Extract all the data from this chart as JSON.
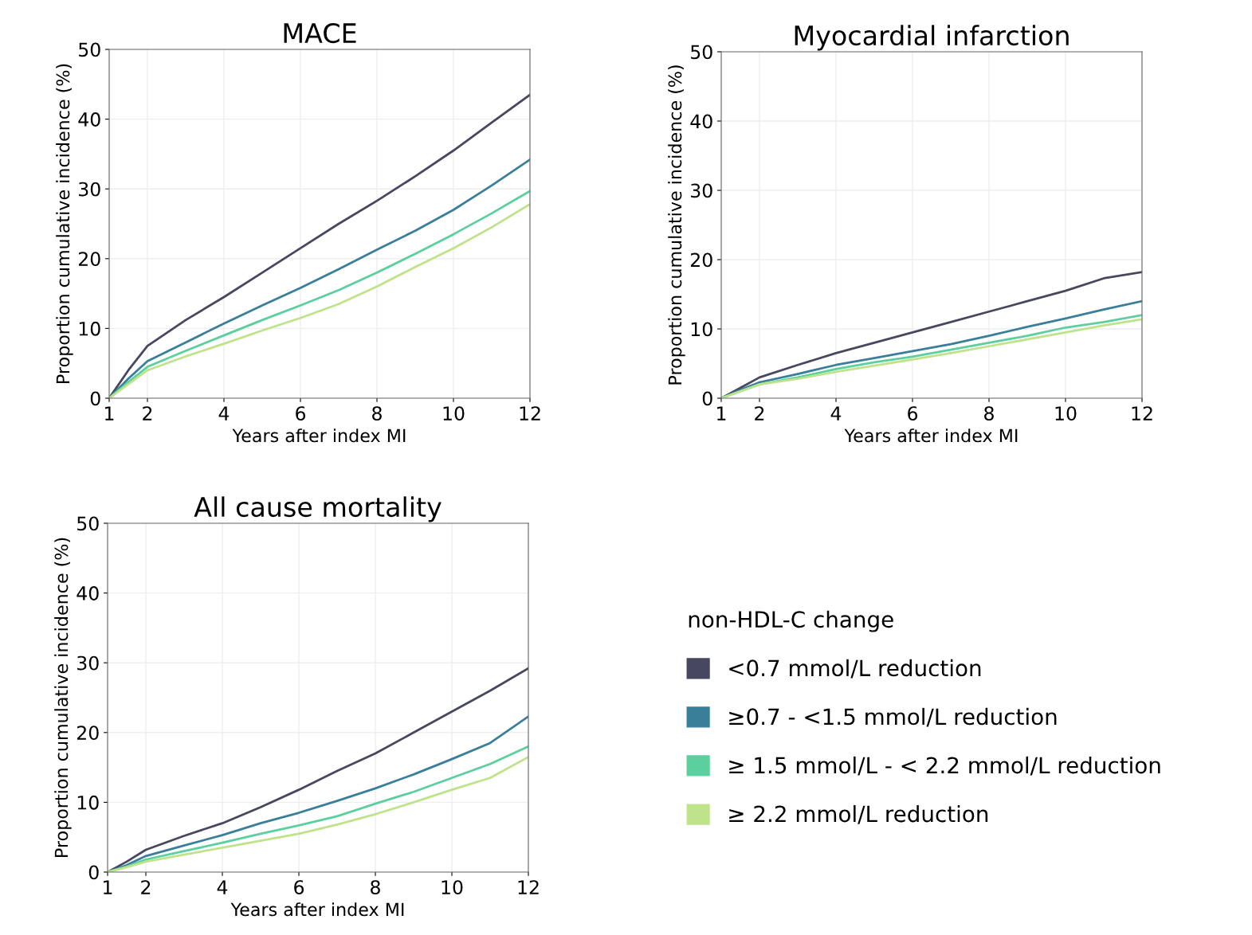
{
  "chart_data": [
    {
      "type": "line",
      "title": "MACE",
      "xlabel": "Years after index MI",
      "ylabel": "Proportion cumulative incidence (%)",
      "x": [
        1,
        1.5,
        2,
        3,
        4,
        5,
        6,
        7,
        8,
        9,
        10,
        11,
        12
      ],
      "xlim": [
        1,
        12
      ],
      "xticks": [
        1,
        2,
        4,
        6,
        8,
        10,
        12
      ],
      "ylim": [
        0,
        50
      ],
      "yticks": [
        0,
        10,
        20,
        30,
        40,
        50
      ],
      "grid": true,
      "series": [
        {
          "color": "#47475f",
          "values": [
            0,
            4,
            7.5,
            11.2,
            14.5,
            18,
            21.5,
            25,
            28.3,
            31.8,
            35.5,
            39.5,
            43.5
          ]
        },
        {
          "color": "#3a7f9a",
          "values": [
            0,
            2.8,
            5.3,
            8,
            10.7,
            13.3,
            15.8,
            18.5,
            21.3,
            24,
            27,
            30.5,
            34.2
          ]
        },
        {
          "color": "#5ccf9e",
          "values": [
            0,
            2.3,
            4.5,
            6.8,
            9,
            11.2,
            13.3,
            15.5,
            18,
            20.7,
            23.5,
            26.5,
            29.7
          ]
        },
        {
          "color": "#bfe38a",
          "values": [
            0,
            2,
            4,
            6,
            7.8,
            9.7,
            11.5,
            13.5,
            16,
            18.8,
            21.5,
            24.5,
            27.8
          ]
        }
      ]
    },
    {
      "type": "line",
      "title": "Myocardial infarction",
      "xlabel": "Years after index MI",
      "ylabel": "Proportion cumulative incidence (%)",
      "x": [
        1,
        1.5,
        2,
        3,
        4,
        5,
        6,
        7,
        8,
        9,
        10,
        11,
        12
      ],
      "xlim": [
        1,
        12
      ],
      "xticks": [
        1,
        2,
        4,
        6,
        8,
        10,
        12
      ],
      "ylim": [
        0,
        50
      ],
      "yticks": [
        0,
        10,
        20,
        30,
        40,
        50
      ],
      "grid": true,
      "series": [
        {
          "color": "#47475f",
          "values": [
            0,
            1.5,
            3,
            4.8,
            6.5,
            8,
            9.5,
            11,
            12.5,
            14,
            15.5,
            17.3,
            18.2
          ]
        },
        {
          "color": "#3a7f9a",
          "values": [
            0,
            1.2,
            2.3,
            3.5,
            4.8,
            5.8,
            6.8,
            7.8,
            9,
            10.3,
            11.5,
            12.8,
            14
          ]
        },
        {
          "color": "#5ccf9e",
          "values": [
            0,
            1,
            2,
            3,
            4.2,
            5.2,
            6,
            7,
            8,
            9,
            10.2,
            11,
            12
          ]
        },
        {
          "color": "#bfe38a",
          "values": [
            0,
            1,
            2,
            2.8,
            3.8,
            4.7,
            5.6,
            6.5,
            7.5,
            8.5,
            9.5,
            10.5,
            11.4
          ]
        }
      ]
    },
    {
      "type": "line",
      "title": "All cause mortality",
      "xlabel": "Years after index MI",
      "ylabel": "Proportion cumulative incidence (%)",
      "x": [
        1,
        1.5,
        2,
        3,
        4,
        5,
        6,
        7,
        8,
        9,
        10,
        11,
        12
      ],
      "xlim": [
        1,
        12
      ],
      "xticks": [
        1,
        2,
        4,
        6,
        8,
        10,
        12
      ],
      "ylim": [
        0,
        50
      ],
      "yticks": [
        0,
        10,
        20,
        30,
        40,
        50
      ],
      "grid": true,
      "legend": "right",
      "legend_title": "non-HDL-C change",
      "series": [
        {
          "name": "<0.7 mmol/L reduction",
          "color": "#47475f",
          "values": [
            0,
            1.5,
            3.2,
            5.2,
            7,
            9.3,
            11.8,
            14.5,
            17,
            20,
            23,
            26,
            29.2
          ]
        },
        {
          "name": "≥0.7 - <1.5 mmol/L reduction",
          "color": "#3a7f9a",
          "values": [
            0,
            1,
            2.3,
            3.8,
            5.3,
            7,
            8.5,
            10.2,
            12,
            14,
            16.2,
            18.5,
            22.3
          ]
        },
        {
          "name": "≥ 1.5 mmol/L - < 2.2 mmol/L reduction",
          "color": "#5ccf9e",
          "values": [
            0,
            0.8,
            1.8,
            3,
            4.2,
            5.5,
            6.7,
            8,
            9.8,
            11.5,
            13.5,
            15.5,
            18
          ]
        },
        {
          "name": "≥ 2.2 mmol/L reduction",
          "color": "#bfe38a",
          "values": [
            0,
            0.7,
            1.5,
            2.5,
            3.5,
            4.5,
            5.5,
            6.8,
            8.3,
            10,
            11.8,
            13.5,
            16.5
          ]
        }
      ]
    }
  ]
}
